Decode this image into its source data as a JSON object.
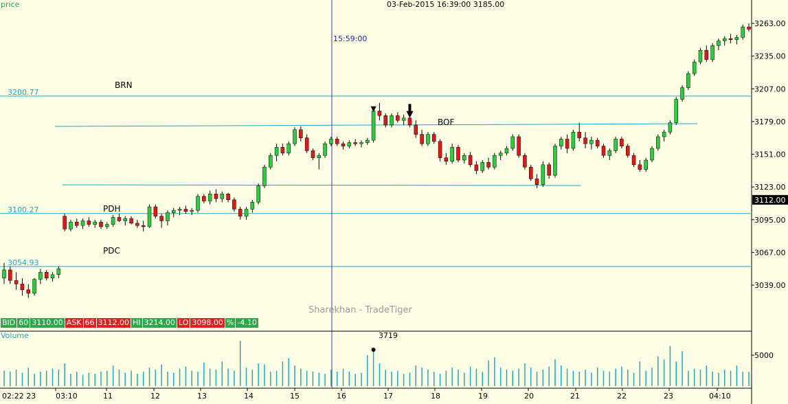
{
  "header": {
    "price_label": "price",
    "cursor_info": "03-Feb-2015 16:39:00 3185.00",
    "cursor_time": "15:59:00",
    "volume_label": "Volume",
    "volume_cursor_value": "3719",
    "watermark": "Sharekhan - TradeTiger"
  },
  "quote": {
    "bid_label": "BID",
    "bid_qty": "60",
    "bid_price": "3110.00",
    "ask_label": "ASK",
    "ask_qty": "66",
    "ask_price": "3112.00",
    "hi_label": "HI",
    "hi_price": "3214.00",
    "lo_label": "LO",
    "lo_price": "3098.00",
    "pct_label": "%",
    "pct_change": "-4.10"
  },
  "levels": [
    {
      "name": "BRN",
      "value": 3200.77,
      "label": "3200.77"
    },
    {
      "name": "PDH",
      "value": 3100.27,
      "label": "3100.27"
    },
    {
      "name": "PDC",
      "value": 3054.93,
      "label": "3054.93"
    }
  ],
  "annotations": {
    "brn": "BRN",
    "pdh": "PDH",
    "pdc": "PDC",
    "bof": "BOF"
  },
  "colors": {
    "background": "#ffffe6",
    "up_candle": "#2ecc40",
    "down_candle": "#e01818",
    "level_line": "#1aa7c8",
    "cursor_line": "#3030c0",
    "volume_bar": "#1aa7c8",
    "last_price_bg": "#000000"
  },
  "chart_data": {
    "type": "candlestick",
    "last_price": "3112.00",
    "y_ticks": [
      "3263.00",
      "3235.00",
      "3207.00",
      "3179.00",
      "3151.00",
      "3123.00",
      "3095.00",
      "3067.00",
      "3039.00"
    ],
    "ylim": [
      3010,
      3280
    ],
    "x_ticks": [
      "02:22 23",
      "03:10",
      "11",
      "12",
      "13",
      "14",
      "15",
      "16",
      "17",
      "18",
      "19",
      "20",
      "21",
      "22",
      "23",
      "04:10"
    ],
    "volume_ticks": [
      "5000"
    ],
    "candles": [
      [
        3045,
        3058,
        3040,
        3052
      ],
      [
        3052,
        3055,
        3040,
        3043
      ],
      [
        3043,
        3050,
        3035,
        3040
      ],
      [
        3040,
        3045,
        3030,
        3035
      ],
      [
        3035,
        3040,
        3028,
        3032
      ],
      [
        3032,
        3045,
        3030,
        3044
      ],
      [
        3044,
        3053,
        3040,
        3050
      ],
      [
        3050,
        3052,
        3043,
        3045
      ],
      [
        3045,
        3050,
        3042,
        3048
      ],
      [
        3048,
        3055,
        3045,
        3053
      ],
      [
        3098,
        3100,
        3085,
        3087
      ],
      [
        3087,
        3095,
        3085,
        3093
      ],
      [
        3093,
        3096,
        3088,
        3090
      ],
      [
        3090,
        3096,
        3087,
        3094
      ],
      [
        3094,
        3097,
        3089,
        3091
      ],
      [
        3091,
        3095,
        3088,
        3093
      ],
      [
        3093,
        3095,
        3087,
        3089
      ],
      [
        3089,
        3093,
        3087,
        3091
      ],
      [
        3091,
        3099,
        3089,
        3097
      ],
      [
        3097,
        3100,
        3093,
        3094
      ],
      [
        3094,
        3098,
        3090,
        3096
      ],
      [
        3096,
        3098,
        3091,
        3092
      ],
      [
        3092,
        3095,
        3088,
        3090
      ],
      [
        3090,
        3094,
        3085,
        3089
      ],
      [
        3089,
        3108,
        3088,
        3106
      ],
      [
        3106,
        3108,
        3096,
        3098
      ],
      [
        3098,
        3100,
        3088,
        3094
      ],
      [
        3094,
        3103,
        3090,
        3101
      ],
      [
        3101,
        3105,
        3097,
        3103
      ],
      [
        3103,
        3106,
        3099,
        3104
      ],
      [
        3104,
        3107,
        3100,
        3102
      ],
      [
        3102,
        3105,
        3099,
        3103
      ],
      [
        3103,
        3117,
        3101,
        3115
      ],
      [
        3115,
        3117,
        3109,
        3111
      ],
      [
        3111,
        3120,
        3108,
        3117
      ],
      [
        3117,
        3121,
        3110,
        3113
      ],
      [
        3113,
        3119,
        3110,
        3117
      ],
      [
        3117,
        3118,
        3110,
        3112
      ],
      [
        3112,
        3114,
        3102,
        3104
      ],
      [
        3104,
        3106,
        3095,
        3098
      ],
      [
        3098,
        3106,
        3095,
        3104
      ],
      [
        3104,
        3112,
        3101,
        3110
      ],
      [
        3110,
        3126,
        3108,
        3124
      ],
      [
        3124,
        3142,
        3122,
        3140
      ],
      [
        3140,
        3152,
        3138,
        3150
      ],
      [
        3150,
        3160,
        3145,
        3157
      ],
      [
        3157,
        3160,
        3150,
        3152
      ],
      [
        3152,
        3162,
        3150,
        3160
      ],
      [
        3160,
        3174,
        3158,
        3172
      ],
      [
        3172,
        3175,
        3162,
        3165
      ],
      [
        3165,
        3168,
        3152,
        3154
      ],
      [
        3154,
        3156,
        3146,
        3148
      ],
      [
        3148,
        3152,
        3138,
        3150
      ],
      [
        3150,
        3162,
        3148,
        3160
      ],
      [
        3160,
        3166,
        3158,
        3164
      ],
      [
        3164,
        3166,
        3158,
        3160
      ],
      [
        3160,
        3162,
        3155,
        3158
      ],
      [
        3158,
        3163,
        3156,
        3161
      ],
      [
        3161,
        3164,
        3158,
        3160
      ],
      [
        3160,
        3163,
        3157,
        3161
      ],
      [
        3161,
        3165,
        3159,
        3163
      ],
      [
        3163,
        3190,
        3161,
        3188
      ],
      [
        3188,
        3195,
        3180,
        3184
      ],
      [
        3184,
        3186,
        3174,
        3176
      ],
      [
        3176,
        3186,
        3174,
        3184
      ],
      [
        3184,
        3187,
        3178,
        3180
      ],
      [
        3180,
        3185,
        3176,
        3182
      ],
      [
        3182,
        3184,
        3174,
        3176
      ],
      [
        3176,
        3180,
        3165,
        3168
      ],
      [
        3168,
        3172,
        3158,
        3160
      ],
      [
        3160,
        3170,
        3158,
        3168
      ],
      [
        3168,
        3170,
        3160,
        3162
      ],
      [
        3162,
        3164,
        3145,
        3148
      ],
      [
        3148,
        3152,
        3142,
        3145
      ],
      [
        3145,
        3160,
        3143,
        3157
      ],
      [
        3157,
        3159,
        3144,
        3146
      ],
      [
        3146,
        3152,
        3143,
        3150
      ],
      [
        3150,
        3153,
        3140,
        3142
      ],
      [
        3142,
        3145,
        3134,
        3137
      ],
      [
        3137,
        3146,
        3135,
        3144
      ],
      [
        3144,
        3148,
        3138,
        3140
      ],
      [
        3140,
        3152,
        3138,
        3150
      ],
      [
        3150,
        3154,
        3146,
        3152
      ],
      [
        3152,
        3158,
        3150,
        3156
      ],
      [
        3156,
        3168,
        3154,
        3166
      ],
      [
        3166,
        3168,
        3148,
        3150
      ],
      [
        3150,
        3152,
        3138,
        3140
      ],
      [
        3140,
        3142,
        3128,
        3130
      ],
      [
        3130,
        3134,
        3122,
        3125
      ],
      [
        3125,
        3145,
        3123,
        3142
      ],
      [
        3142,
        3144,
        3130,
        3133
      ],
      [
        3133,
        3160,
        3131,
        3158
      ],
      [
        3158,
        3166,
        3155,
        3164
      ],
      [
        3164,
        3168,
        3152,
        3156
      ],
      [
        3156,
        3172,
        3154,
        3170
      ],
      [
        3170,
        3178,
        3162,
        3165
      ],
      [
        3165,
        3170,
        3156,
        3160
      ],
      [
        3160,
        3166,
        3155,
        3163
      ],
      [
        3163,
        3165,
        3156,
        3158
      ],
      [
        3158,
        3160,
        3148,
        3150
      ],
      [
        3150,
        3156,
        3146,
        3154
      ],
      [
        3154,
        3166,
        3152,
        3164
      ],
      [
        3164,
        3166,
        3156,
        3158
      ],
      [
        3158,
        3160,
        3148,
        3150
      ],
      [
        3150,
        3152,
        3140,
        3142
      ],
      [
        3142,
        3146,
        3136,
        3138
      ],
      [
        3138,
        3148,
        3136,
        3146
      ],
      [
        3146,
        3158,
        3144,
        3156
      ],
      [
        3156,
        3168,
        3154,
        3166
      ],
      [
        3166,
        3172,
        3162,
        3170
      ],
      [
        3170,
        3180,
        3168,
        3178
      ],
      [
        3178,
        3200,
        3176,
        3198
      ],
      [
        3198,
        3210,
        3196,
        3208
      ],
      [
        3208,
        3222,
        3206,
        3220
      ],
      [
        3220,
        3232,
        3218,
        3230
      ],
      [
        3230,
        3242,
        3228,
        3240
      ],
      [
        3240,
        3244,
        3230,
        3232
      ],
      [
        3232,
        3246,
        3230,
        3244
      ],
      [
        3244,
        3250,
        3240,
        3248
      ],
      [
        3248,
        3252,
        3244,
        3250
      ],
      [
        3250,
        3254,
        3246,
        3249
      ],
      [
        3249,
        3253,
        3245,
        3251
      ],
      [
        3251,
        3262,
        3249,
        3260
      ],
      [
        3260,
        3263,
        3256,
        3258
      ]
    ],
    "volume_values": [
      15,
      14,
      16,
      13,
      18,
      12,
      14,
      15,
      17,
      16,
      22,
      12,
      14,
      11,
      13,
      12,
      14,
      15,
      20,
      16,
      13,
      15,
      12,
      14,
      18,
      16,
      21,
      14,
      13,
      17,
      19,
      15,
      14,
      23,
      17,
      16,
      24,
      17,
      15,
      44,
      18,
      16,
      22,
      21,
      14,
      15,
      24,
      27,
      20,
      17,
      15,
      14,
      13,
      12,
      16,
      14,
      17,
      14,
      12,
      13,
      30,
      36,
      22,
      16,
      14,
      15,
      12,
      13,
      20,
      18,
      16,
      14,
      12,
      15,
      18,
      16,
      13,
      19,
      17,
      14,
      25,
      28,
      18,
      16,
      15,
      17,
      22,
      18,
      14,
      16,
      19,
      26,
      20,
      17,
      15,
      14,
      16,
      13,
      18,
      15,
      14,
      17,
      19,
      16,
      13,
      24,
      15,
      18,
      29,
      26,
      39,
      24,
      34,
      15,
      17,
      16,
      20,
      14,
      13,
      16,
      15,
      20,
      14,
      14
    ]
  }
}
